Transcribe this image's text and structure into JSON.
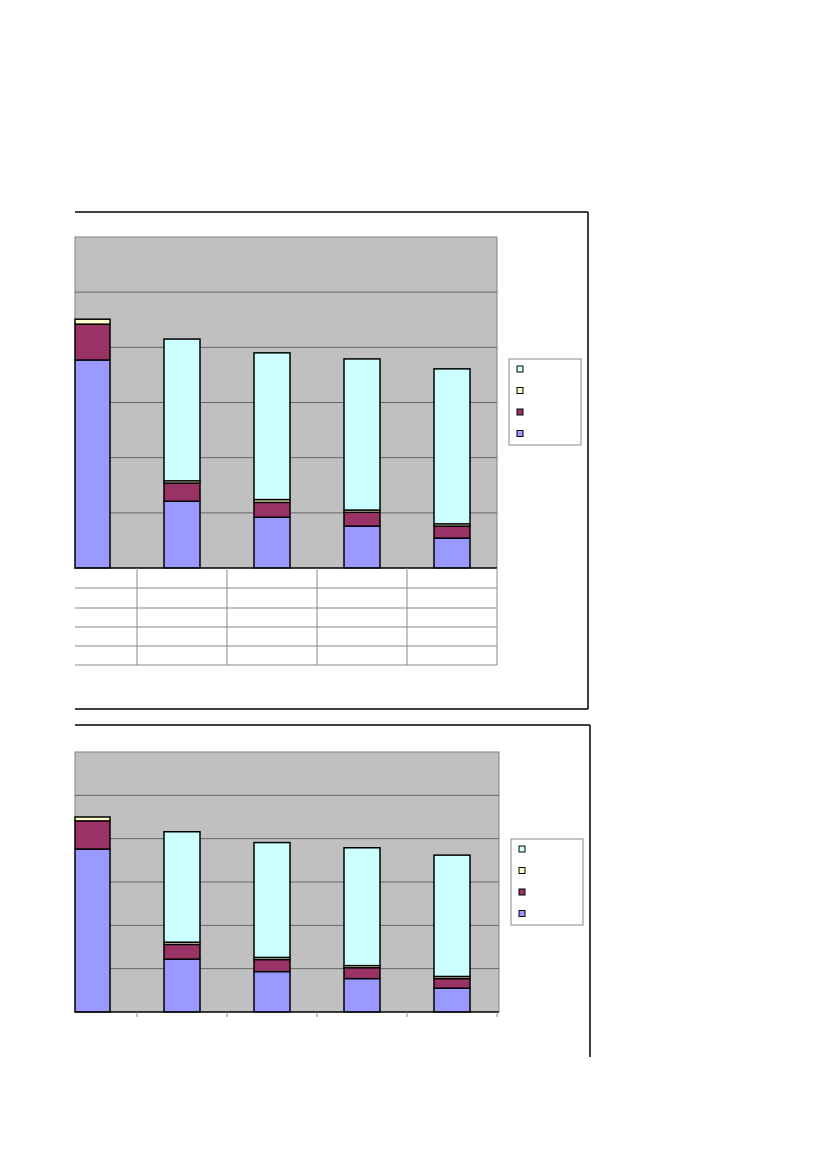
{
  "chart_data": [
    {
      "type": "bar",
      "stacked": true,
      "has_data_table": true,
      "data_table_rows": 5,
      "ylim": [
        0,
        6
      ],
      "grid": true,
      "legend_position": "right",
      "plot_background": "#C0C0C0",
      "series": [
        {
          "color": "#9999FF",
          "values": [
            3.77,
            1.21,
            0.92,
            0.76,
            0.54
          ]
        },
        {
          "color": "#993366",
          "values": [
            0.65,
            0.33,
            0.27,
            0.25,
            0.22
          ]
        },
        {
          "color": "#FFFFCC",
          "values": [
            0.09,
            0.04,
            0.05,
            0.04,
            0.04
          ]
        },
        {
          "color": "#CCFFFF",
          "values": [
            0,
            2.57,
            2.66,
            2.74,
            2.81
          ]
        }
      ]
    },
    {
      "type": "bar",
      "stacked": true,
      "has_data_table": false,
      "ylim": [
        0,
        6
      ],
      "grid": true,
      "legend_position": "right",
      "plot_background": "#C0C0C0",
      "series": [
        {
          "color": "#9999FF",
          "values": [
            3.76,
            1.22,
            0.93,
            0.77,
            0.55
          ]
        },
        {
          "color": "#993366",
          "values": [
            0.65,
            0.34,
            0.28,
            0.25,
            0.22
          ]
        },
        {
          "color": "#FFFFCC",
          "values": [
            0.09,
            0.05,
            0.05,
            0.05,
            0.05
          ]
        },
        {
          "color": "#CCFFFF",
          "values": [
            0,
            2.55,
            2.65,
            2.72,
            2.8
          ]
        }
      ]
    }
  ]
}
